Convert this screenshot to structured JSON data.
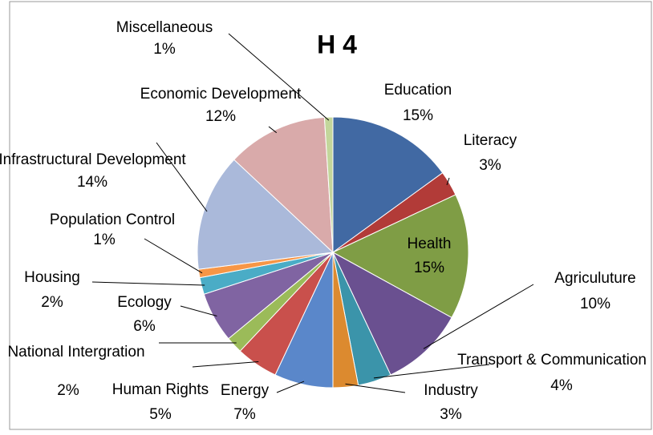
{
  "chart_data": {
    "type": "pie",
    "title": "H 4",
    "categories": [
      "Education",
      "Literacy",
      "Health",
      "Agriculuture",
      "Transport & Communication",
      "Industry",
      "Energy",
      "Human Rights",
      "National Intergration",
      "Ecology",
      "Housing",
      "Population Control",
      "Infrastructural Development",
      "Economic Development",
      "Miscellaneous"
    ],
    "values": [
      15,
      3,
      15,
      10,
      4,
      3,
      7,
      5,
      2,
      6,
      2,
      1,
      14,
      12,
      1
    ],
    "value_labels": [
      "15%",
      "3%",
      "15%",
      "10%",
      "4%",
      "3%",
      "7%",
      "5%",
      "2%",
      "6%",
      "2%",
      "1%",
      "14%",
      "12%",
      "1%"
    ],
    "colors": [
      "#4169a3",
      "#b23b38",
      "#7f9d45",
      "#6a5090",
      "#3b94aa",
      "#dc8a2f",
      "#5a87ca",
      "#c9504c",
      "#9bbb59",
      "#8064a2",
      "#4aacc6",
      "#f79646",
      "#aab9da",
      "#d9aaaa",
      "#c3d69b"
    ]
  }
}
